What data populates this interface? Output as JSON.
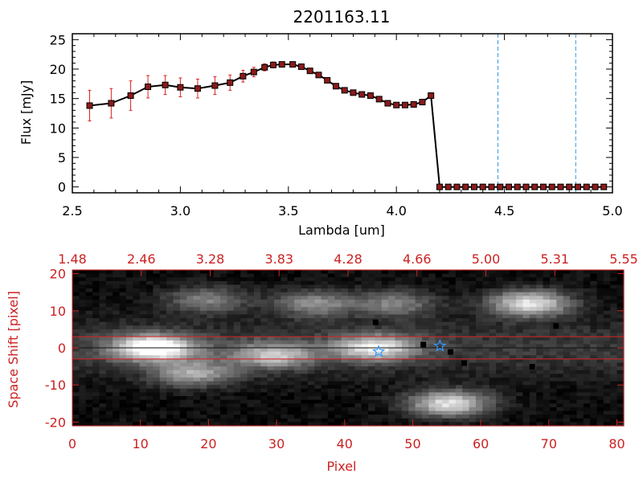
{
  "chart_data": [
    {
      "type": "line",
      "title": "2201163.11",
      "xlabel": "Lambda [um]",
      "ylabel": "Flux [mJy]",
      "xlim": [
        2.5,
        5.0
      ],
      "ylim": [
        -1,
        26
      ],
      "x_ticks": [
        "2.5",
        "3.0",
        "3.5",
        "4.0",
        "4.5",
        "5.0"
      ],
      "y_ticks": [
        "0",
        "5",
        "10",
        "15",
        "20",
        "25"
      ],
      "grid": false,
      "colors": {
        "line": "#000000",
        "marker": "#8b1a1a",
        "errorbar": "#dd2222",
        "vline": "#3399dd"
      },
      "vlines": [
        4.47,
        4.83
      ],
      "series": [
        {
          "x": [
            2.58,
            2.68,
            2.77,
            2.85,
            2.93,
            3.0,
            3.08,
            3.16,
            3.23,
            3.29,
            3.34,
            3.39,
            3.43,
            3.47,
            3.52,
            3.56,
            3.6,
            3.64,
            3.68,
            3.72,
            3.76,
            3.8,
            3.84,
            3.88,
            3.92,
            3.96,
            4.0,
            4.04,
            4.08,
            4.12,
            4.16,
            4.2,
            4.24,
            4.28,
            4.32,
            4.36,
            4.4,
            4.44,
            4.48,
            4.52,
            4.56,
            4.6,
            4.64,
            4.68,
            4.72,
            4.76,
            4.8,
            4.84,
            4.88,
            4.92,
            4.96
          ],
          "y": [
            13.8,
            14.2,
            15.5,
            17.0,
            17.3,
            16.9,
            16.7,
            17.2,
            17.7,
            18.8,
            19.5,
            20.3,
            20.7,
            20.8,
            20.8,
            20.4,
            19.7,
            19.0,
            18.1,
            17.1,
            16.4,
            16.0,
            15.7,
            15.5,
            14.9,
            14.2,
            13.9,
            13.9,
            14.0,
            14.4,
            15.5,
            0,
            0,
            0,
            0,
            0,
            0,
            0,
            0,
            0,
            0,
            0,
            0,
            0,
            0,
            0,
            0,
            0,
            0,
            0,
            0
          ],
          "yerr": [
            2.6,
            2.5,
            2.5,
            1.9,
            1.6,
            1.6,
            1.6,
            1.5,
            1.3,
            1.0,
            0.8,
            0.6,
            0.5,
            0.4,
            0.4,
            0.4,
            0.4,
            0.4,
            0.4,
            0.4,
            0.4,
            0.4,
            0.4,
            0.4,
            0.4,
            0.4,
            0.4,
            0.4,
            0.4,
            0.4,
            0.4,
            0,
            0,
            0,
            0,
            0,
            0,
            0,
            0,
            0,
            0,
            0,
            0,
            0,
            0,
            0,
            0,
            0,
            0,
            0,
            0
          ]
        }
      ]
    },
    {
      "type": "heatmap",
      "xlabel": "Pixel",
      "ylabel": "Space Shift [pixel]",
      "xlim": [
        0,
        81
      ],
      "ylim": [
        -21,
        21
      ],
      "x_ticks": [
        "0",
        "10",
        "20",
        "30",
        "40",
        "50",
        "60",
        "70",
        "80"
      ],
      "y_ticks": [
        "-20",
        "-10",
        "0",
        "10",
        "20"
      ],
      "top_axis_ticks": [
        "1.48",
        "2.46",
        "3.28",
        "3.83",
        "4.28",
        "4.66",
        "5.00",
        "5.31",
        "5.55"
      ],
      "colormap": "grayscale",
      "axis_color": "#cc2222",
      "guide_lines_y": [
        3,
        0,
        -3
      ],
      "guide_line_colors": [
        "#dd2222",
        "#111111",
        "#dd2222"
      ],
      "blobs": [
        {
          "x": 12,
          "y": 0,
          "amplitude": 1.0
        },
        {
          "x": 20,
          "y": 13,
          "amplitude": 0.45
        },
        {
          "x": 18,
          "y": -7,
          "amplitude": 0.55
        },
        {
          "x": 36,
          "y": 12,
          "amplitude": 0.5
        },
        {
          "x": 48,
          "y": 12,
          "amplitude": 0.45
        },
        {
          "x": 45,
          "y": 0,
          "amplitude": 0.75
        },
        {
          "x": 68,
          "y": 12,
          "amplitude": 0.85
        },
        {
          "x": 56,
          "y": -15,
          "amplitude": 0.85
        },
        {
          "x": 30,
          "y": -2,
          "amplitude": 0.6
        }
      ],
      "bad_pixels": [
        {
          "x": 44.5,
          "y": 7
        },
        {
          "x": 51.5,
          "y": 1
        },
        {
          "x": 55.5,
          "y": -1
        },
        {
          "x": 57.5,
          "y": -4
        },
        {
          "x": 67.5,
          "y": -5
        },
        {
          "x": 71,
          "y": 6
        }
      ],
      "stars": [
        {
          "x": 45,
          "y": -1,
          "color": "#3399ff"
        },
        {
          "x": 54,
          "y": 0.5,
          "color": "#3399ff"
        }
      ]
    }
  ]
}
